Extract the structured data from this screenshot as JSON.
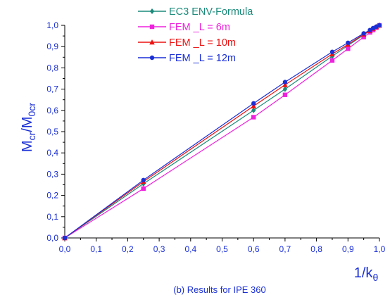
{
  "chart_data": {
    "type": "line",
    "title": "",
    "caption": "(b) Results for IPE 360",
    "xlabel": {
      "main": "1/k",
      "sub": "θ"
    },
    "ylabel": {
      "main": "M",
      "sub1": "cr",
      "slash": "/M",
      "sub2": "0cr"
    },
    "xlim": [
      0,
      1
    ],
    "ylim": [
      0,
      1
    ],
    "x_ticks": [
      "0,0",
      "0,1",
      "0,2",
      "0,3",
      "0,4",
      "0,5",
      "0,6",
      "0,7",
      "0,8",
      "0,9",
      "1,0"
    ],
    "y_ticks": [
      "0,0",
      "0,1",
      "0,2",
      "0,3",
      "0,4",
      "0,5",
      "0,6",
      "0,7",
      "0,8",
      "0,9",
      "1,0"
    ],
    "grid": false,
    "legend_position": "top-left",
    "series": [
      {
        "name": "EC3 ENV-Formula",
        "color": "#1a8a7a",
        "marker": "diamond",
        "x": [
          0,
          0.25,
          0.6,
          0.7,
          0.85,
          0.9,
          0.95,
          0.97,
          0.98,
          0.99,
          1.0
        ],
        "y": [
          0,
          0.255,
          0.6,
          0.7,
          0.855,
          0.905,
          0.955,
          0.975,
          0.985,
          0.993,
          1.0
        ]
      },
      {
        "name": "FEM _L = 6m",
        "color": "#ee22dd",
        "marker": "square",
        "x": [
          0,
          0.25,
          0.6,
          0.7,
          0.85,
          0.9,
          0.95,
          0.97,
          0.98,
          0.99,
          1.0
        ],
        "y": [
          0,
          0.232,
          0.568,
          0.673,
          0.835,
          0.89,
          0.945,
          0.967,
          0.978,
          0.989,
          1.0
        ]
      },
      {
        "name": "FEM _L = 10m",
        "color": "#ee1111",
        "marker": "triangle",
        "x": [
          0,
          0.25,
          0.6,
          0.7,
          0.85,
          0.9,
          0.95,
          0.97,
          0.98,
          0.99,
          1.0
        ],
        "y": [
          0,
          0.265,
          0.62,
          0.72,
          0.865,
          0.91,
          0.958,
          0.975,
          0.985,
          0.993,
          1.0
        ]
      },
      {
        "name": "FEM _L = 12m",
        "color": "#1a2fd6",
        "marker": "circle",
        "x": [
          0,
          0.25,
          0.6,
          0.7,
          0.85,
          0.9,
          0.95,
          0.97,
          0.98,
          0.99,
          1.0
        ],
        "y": [
          0,
          0.272,
          0.633,
          0.733,
          0.875,
          0.918,
          0.962,
          0.978,
          0.987,
          0.994,
          1.0
        ]
      }
    ]
  }
}
